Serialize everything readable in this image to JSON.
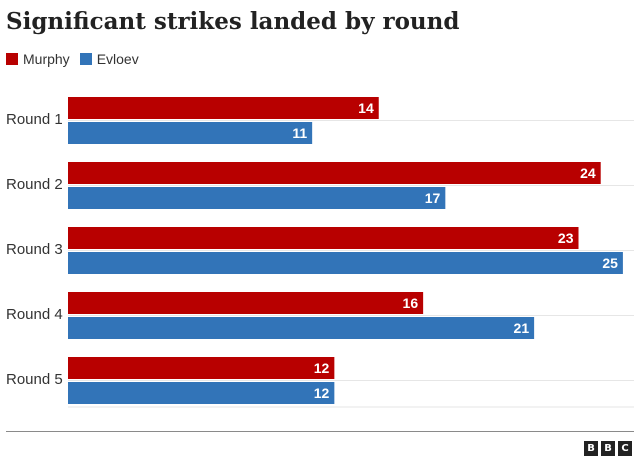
{
  "chart_data": {
    "type": "bar",
    "orientation": "horizontal",
    "title": "Significant strikes landed by round",
    "categories": [
      "Round 1",
      "Round 2",
      "Round 3",
      "Round 4",
      "Round 5"
    ],
    "series": [
      {
        "name": "Murphy",
        "color": "#b80000",
        "values": [
          14,
          24,
          23,
          16,
          12
        ]
      },
      {
        "name": "Evloev",
        "color": "#3274b8",
        "values": [
          11,
          17,
          25,
          21,
          12
        ]
      }
    ],
    "xlim": [
      0,
      25.5
    ],
    "grid": true,
    "legend_position": "top-left",
    "data_labels": true
  },
  "logo": {
    "letters": [
      "B",
      "B",
      "C"
    ]
  }
}
